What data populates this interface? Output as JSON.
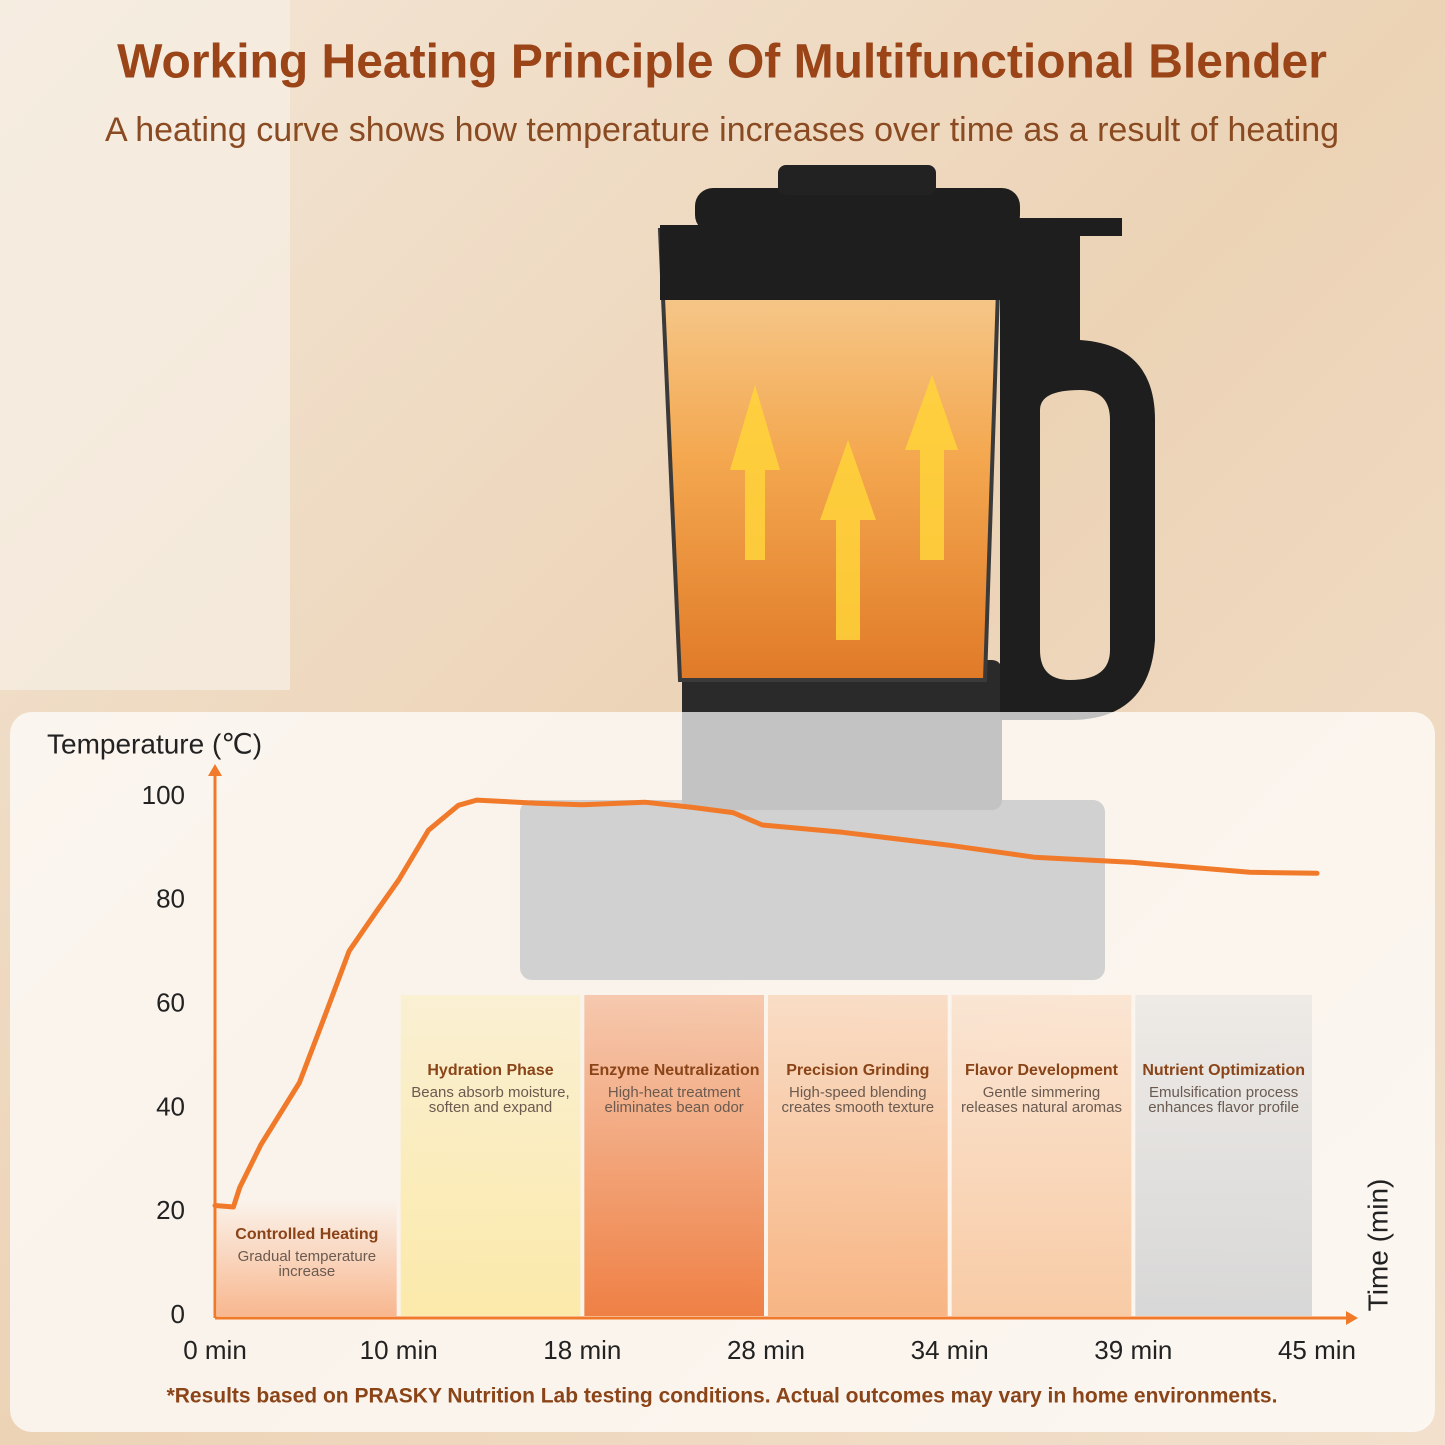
{
  "chart_data": {
    "type": "line",
    "title": "Working Heating Principle Of Multifunctional Blender",
    "subtitle": "A heating curve shows how temperature increases over time as a result of heating",
    "y_label": "Temperature (℃)",
    "x_label": "Time (min)",
    "xlim": [
      0,
      45
    ],
    "xticks": [
      {
        "value": 0,
        "label": "0 min"
      },
      {
        "value": 10,
        "label": "10 min"
      },
      {
        "value": 18,
        "label": "18 min"
      },
      {
        "value": 28,
        "label": "28 min"
      },
      {
        "value": 34,
        "label": "34 min"
      },
      {
        "value": 39,
        "label": "39 min"
      },
      {
        "value": 45,
        "label": "45 min"
      }
    ],
    "ylim": [
      0,
      100
    ],
    "yticks": [
      0,
      20,
      40,
      60,
      80,
      100
    ],
    "series": [
      {
        "color": "#f07a2a",
        "x": [
          0,
          1,
          1.35,
          2.5,
          4.6,
          6,
          7.3,
          8.8,
          10,
          11.3,
          12.6,
          13.4,
          16,
          18,
          21.4,
          24,
          26.2,
          27.8,
          30.5,
          34,
          36.3,
          39,
          42.8,
          45
        ],
        "values": [
          21.3,
          21,
          24.8,
          33,
          45,
          58,
          70.3,
          78,
          84,
          93.6,
          98.4,
          99.4,
          98.8,
          98.5,
          99,
          98,
          97,
          94.6,
          93.2,
          90.7,
          88.4,
          87.4,
          85.5,
          85.3
        ]
      }
    ],
    "phases": [
      {
        "title": "Controlled Heating",
        "lines": [
          "Gradual temperature",
          "increase"
        ],
        "color": "#f8b48a"
      },
      {
        "title": "Hydration Phase",
        "lines": [
          "Beans absorb moisture,",
          "soften and expand"
        ],
        "color": "#fbe9a6"
      },
      {
        "title": "Enzyme Neutralization",
        "lines": [
          "High-heat treatment",
          "eliminates bean odor"
        ],
        "color": "#ee7a3c"
      },
      {
        "title": "Precision Grinding",
        "lines": [
          "High-speed blending",
          "creates smooth texture"
        ],
        "color": "#f7b27e"
      },
      {
        "title": "Flavor Development",
        "lines": [
          "Gentle simmering",
          "releases natural aromas"
        ],
        "color": "#f8c9a2"
      },
      {
        "title": "Nutrient Optimization",
        "lines": [
          "Emulsification process",
          "enhances flavor profile"
        ],
        "color": "#d6d6d6"
      }
    ],
    "footnote": "*Results based on PRASKY Nutrition Lab testing conditions. Actual outcomes may vary in home environments."
  }
}
